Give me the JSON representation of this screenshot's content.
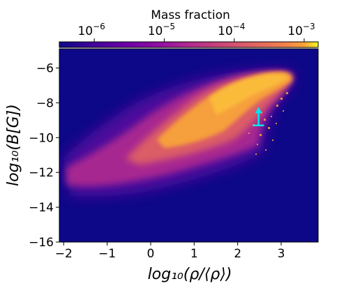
{
  "chart_data": {
    "type": "heatmap",
    "title": "",
    "xlabel": "log₁₀(ρ/⟨ρ⟩)",
    "ylabel": "log₁₀(B[G])",
    "xlim": [
      -2.1,
      3.85
    ],
    "ylim": [
      -16,
      -4.9
    ],
    "x_ticks": [
      {
        "value": -2,
        "label": "−2"
      },
      {
        "value": -1,
        "label": "−1"
      },
      {
        "value": 0,
        "label": "0"
      },
      {
        "value": 1,
        "label": "1"
      },
      {
        "value": 2,
        "label": "2"
      },
      {
        "value": 3,
        "label": "3"
      }
    ],
    "y_ticks": [
      {
        "value": -6,
        "label": "−6"
      },
      {
        "value": -8,
        "label": "−8"
      },
      {
        "value": -10,
        "label": "−10"
      },
      {
        "value": -12,
        "label": "−12"
      },
      {
        "value": -14,
        "label": "−14"
      },
      {
        "value": -16,
        "label": "−16"
      }
    ],
    "colorbar": {
      "title": "Mass fraction",
      "scale": "log",
      "range_exp": [
        -6.5,
        -2.8
      ],
      "ticks": [
        {
          "exp": -6,
          "label": "10",
          "sup": "−6"
        },
        {
          "exp": -5,
          "label": "10",
          "sup": "−5"
        },
        {
          "exp": -4,
          "label": "10",
          "sup": "−4"
        },
        {
          "exp": -3,
          "label": "10",
          "sup": "−3"
        }
      ],
      "colormap": "plasma",
      "placement": "top"
    },
    "background_color": "#0d0887",
    "marker": {
      "x": 2.48,
      "y_low": -9.3,
      "y_high": -8.4,
      "color": "#00e5ee",
      "style": "lower-limit-arrow"
    }
  }
}
